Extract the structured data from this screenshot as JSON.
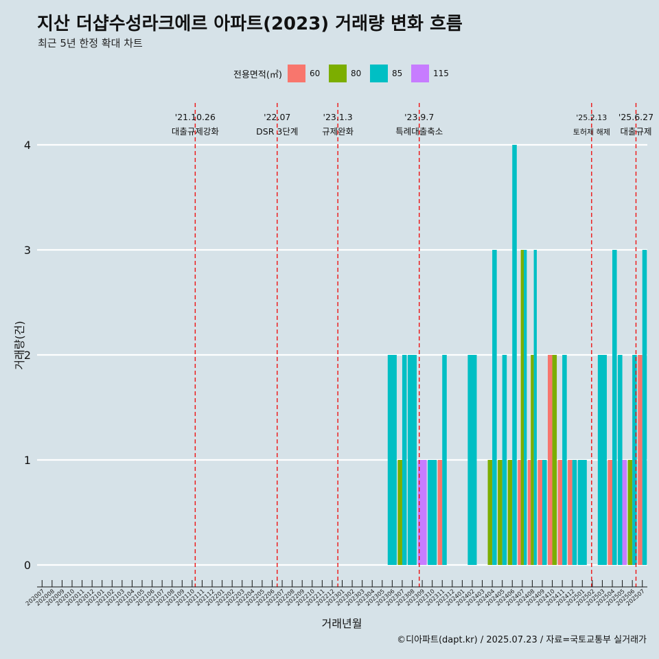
{
  "title": "지산 더샵수성라크에르 아파트(2023) 거래량 변화 흐름",
  "subtitle": "최근 5년 한정 확대 차트",
  "footer": "©디아파트(dapt.kr) / 2025.07.23 / 자료=국토교통부 실거래가",
  "legend": {
    "title": "전용면적(㎡)",
    "items": [
      {
        "label": "60",
        "color": "#f8766d"
      },
      {
        "label": "80",
        "color": "#7cae00"
      },
      {
        "label": "85",
        "color": "#00bfc4"
      },
      {
        "label": "115",
        "color": "#c77cff"
      }
    ]
  },
  "chart_data": {
    "type": "bar",
    "xlabel": "거래년월",
    "ylabel": "거래량(건)",
    "ylim": [
      0,
      4
    ],
    "yticks": [
      0,
      1,
      2,
      3,
      4
    ],
    "categories": [
      "202007",
      "202008",
      "202009",
      "202010",
      "202011",
      "202012",
      "202101",
      "202102",
      "202103",
      "202104",
      "202105",
      "202106",
      "202107",
      "202108",
      "202109",
      "202110",
      "202111",
      "202112",
      "202201",
      "202202",
      "202203",
      "202204",
      "202205",
      "202206",
      "202207",
      "202208",
      "202209",
      "202210",
      "202211",
      "202212",
      "202301",
      "202302",
      "202303",
      "202304",
      "202305",
      "202306",
      "202307",
      "202308",
      "202309",
      "202310",
      "202311",
      "202312",
      "202401",
      "202402",
      "202403",
      "202404",
      "202405",
      "202406",
      "202407",
      "202408",
      "202409",
      "202410",
      "202411",
      "202412",
      "202501",
      "202502",
      "202503",
      "202504",
      "202505",
      "202506",
      "202507"
    ],
    "series": [
      {
        "name": "60",
        "color": "#f8766d",
        "values": [
          0,
          0,
          0,
          0,
          0,
          0,
          0,
          0,
          0,
          0,
          0,
          0,
          0,
          0,
          0,
          0,
          0,
          0,
          0,
          0,
          0,
          0,
          0,
          0,
          0,
          0,
          0,
          0,
          0,
          0,
          0,
          0,
          0,
          0,
          0,
          0,
          0,
          0,
          0,
          0,
          1,
          0,
          0,
          0,
          0,
          0,
          0,
          0,
          1,
          1,
          1,
          2,
          1,
          1,
          0,
          0,
          0,
          1,
          0,
          0,
          2
        ]
      },
      {
        "name": "80",
        "color": "#7cae00",
        "values": [
          0,
          0,
          0,
          0,
          0,
          0,
          0,
          0,
          0,
          0,
          0,
          0,
          0,
          0,
          0,
          0,
          0,
          0,
          0,
          0,
          0,
          0,
          0,
          0,
          0,
          0,
          0,
          0,
          0,
          0,
          0,
          0,
          0,
          0,
          0,
          0,
          1,
          0,
          0,
          0,
          0,
          0,
          0,
          0,
          0,
          1,
          1,
          1,
          3,
          2,
          0,
          2,
          0,
          0,
          0,
          0,
          0,
          0,
          0,
          1,
          0
        ]
      },
      {
        "name": "85",
        "color": "#00bfc4",
        "values": [
          0,
          0,
          0,
          0,
          0,
          0,
          0,
          0,
          0,
          0,
          0,
          0,
          0,
          0,
          0,
          0,
          0,
          0,
          0,
          0,
          0,
          0,
          0,
          0,
          0,
          0,
          0,
          0,
          0,
          0,
          0,
          0,
          0,
          0,
          0,
          2,
          2,
          2,
          0,
          1,
          2,
          0,
          0,
          2,
          0,
          3,
          2,
          4,
          3,
          3,
          1,
          0,
          2,
          1,
          1,
          0,
          2,
          3,
          2,
          2,
          3
        ]
      },
      {
        "name": "115",
        "color": "#c77cff",
        "values": [
          0,
          0,
          0,
          0,
          0,
          0,
          0,
          0,
          0,
          0,
          0,
          0,
          0,
          0,
          0,
          0,
          0,
          0,
          0,
          0,
          0,
          0,
          0,
          0,
          0,
          0,
          0,
          0,
          0,
          0,
          0,
          0,
          0,
          0,
          0,
          0,
          0,
          0,
          1,
          0,
          0,
          0,
          0,
          0,
          0,
          0,
          0,
          0,
          0,
          0,
          0,
          0,
          0,
          0,
          0,
          0,
          0,
          0,
          1,
          0,
          0
        ]
      }
    ],
    "events": [
      {
        "month": "2021-10-26",
        "date_label": "'21.10.26",
        "desc": "대출규제강화"
      },
      {
        "month": "2022-07",
        "date_label": "'22.07",
        "desc": "DSR 3단계"
      },
      {
        "month": "2023-01-03",
        "date_label": "'23.1.3",
        "desc": "규제완화"
      },
      {
        "month": "2023-09-07",
        "date_label": "'23.9.7",
        "desc": "특례대출축소"
      },
      {
        "month": "2025-02-13",
        "date_label": "'25.2.13",
        "desc": "토허제 해제"
      },
      {
        "month": "2025-06-27",
        "date_label": "'25.6.27",
        "desc": "대출규제"
      }
    ]
  }
}
